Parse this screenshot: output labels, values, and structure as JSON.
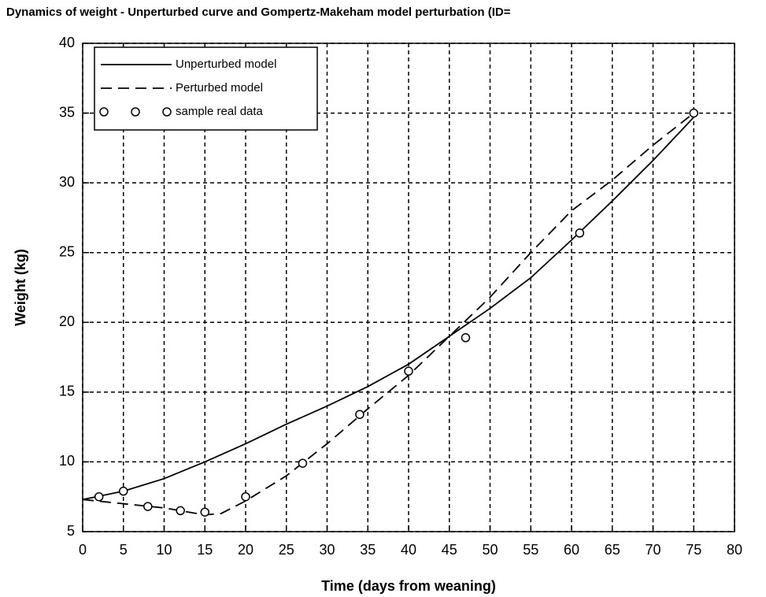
{
  "chart_data": {
    "type": "line",
    "title": "Dynamics of weight - Unperturbed curve and Gompertz-Makeham model perturbation (ID=",
    "x_label": "Time (days from weaning)",
    "y_label": "Weight (kg)",
    "xlim": [
      0,
      80
    ],
    "xticks": [
      0,
      5,
      10,
      15,
      20,
      25,
      30,
      35,
      40,
      45,
      50,
      55,
      60,
      65,
      70,
      75,
      80
    ],
    "ylim": [
      5,
      40
    ],
    "yticks": [
      5,
      10,
      15,
      20,
      25,
      30,
      35,
      40
    ],
    "grid": true,
    "legend": "upper left",
    "series": [
      {
        "name": "Unperturbed model",
        "color": "#000000",
        "style": "solid",
        "x": [
          0,
          5,
          10,
          15,
          20,
          25,
          30,
          35,
          40,
          45,
          50,
          55,
          60,
          65,
          70,
          75
        ],
        "values": [
          7.3,
          7.9,
          8.8,
          10.0,
          11.3,
          12.7,
          14.0,
          15.4,
          17.0,
          19.0,
          21.0,
          23.2,
          25.9,
          28.7,
          31.6,
          34.7
        ]
      },
      {
        "name": "Perturbed model",
        "color": "#000000",
        "style": "dashed",
        "x": [
          0,
          5,
          10,
          15,
          17,
          20,
          25,
          30,
          35,
          40,
          45,
          50,
          55,
          60,
          65,
          70,
          75
        ],
        "values": [
          7.3,
          7.0,
          6.7,
          6.2,
          6.3,
          7.2,
          9.0,
          11.3,
          13.8,
          16.2,
          19.0,
          21.8,
          25.0,
          28.0,
          30.2,
          32.7,
          35.0
        ]
      },
      {
        "name": "sample real data",
        "color": "#000000",
        "style": "markers",
        "x": [
          2,
          5,
          8,
          12,
          15,
          20,
          27,
          34,
          40,
          47,
          61,
          75
        ],
        "values": [
          7.5,
          7.9,
          6.8,
          6.5,
          6.4,
          7.5,
          9.9,
          13.4,
          16.5,
          18.9,
          26.4,
          35.0
        ]
      }
    ]
  }
}
